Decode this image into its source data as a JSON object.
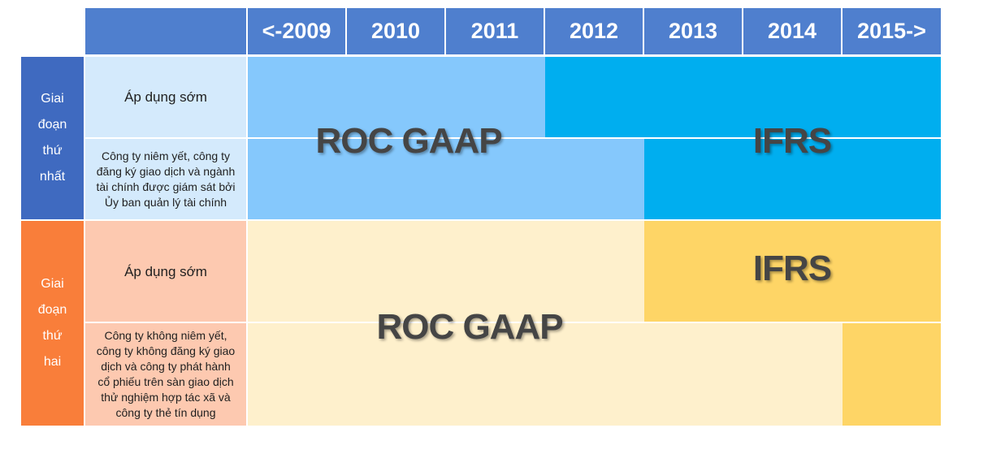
{
  "header": {
    "years": [
      "<-2009",
      "2010",
      "2011",
      "2012",
      "2013",
      "2014",
      "2015->"
    ]
  },
  "phase1": {
    "label_lines": [
      "Giai",
      "đoạn",
      "thứ",
      "nhất"
    ],
    "row_early_label": "Áp dụng sớm",
    "row_main_label": "Công ty niêm yết, công ty đăng ký giao dịch và ngành tài chính được giám sát bởi Ủy ban quản lý tài chính",
    "roc_text": "ROC GAAP",
    "ifrs_text": "IFRS"
  },
  "phase2": {
    "label_lines": [
      "Giai",
      "đoạn",
      "thứ",
      "hai"
    ],
    "row_early_label": "Áp dụng sớm",
    "row_main_label": "Công ty không niêm yết, công ty không đăng ký giao dịch và công ty phát hành cổ phiếu trên sàn giao dịch thử nghiệm hợp tác xã và công ty thẻ tín dụng",
    "roc_text": "ROC GAAP",
    "ifrs_text": "IFRS"
  },
  "colors": {
    "header": "#4f7fce",
    "phase1": "#3f6ac0",
    "phase2": "#f97e3a",
    "roc_phase1": "#85c8fc",
    "ifrs_phase1": "#00aeef",
    "roc_phase2": "#fef0cc",
    "ifrs_phase2": "#fed566"
  }
}
